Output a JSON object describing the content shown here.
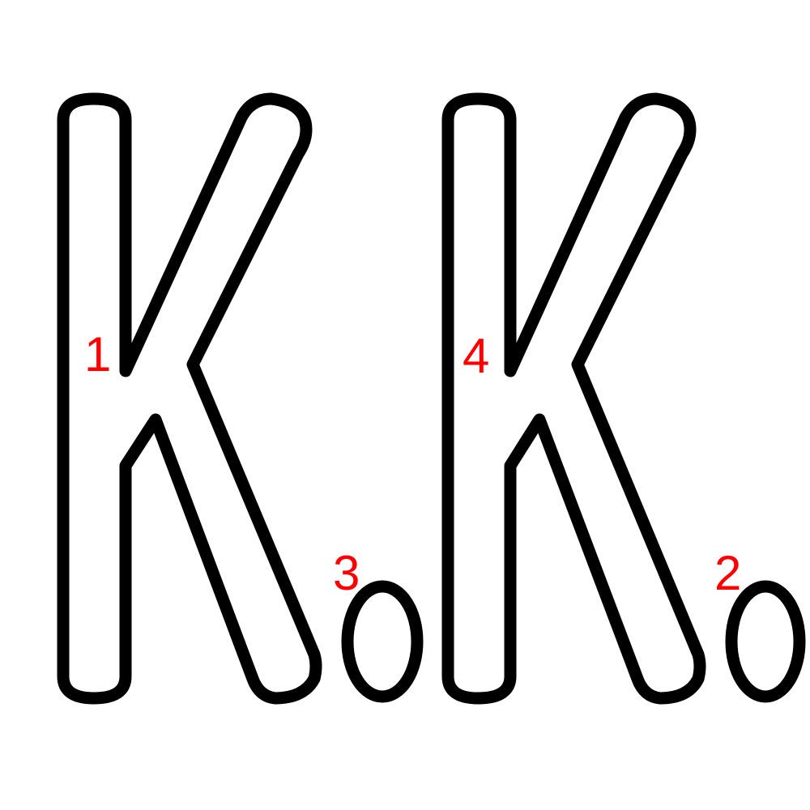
{
  "colors": {
    "outline": "#000000",
    "marker": "#ff0000",
    "background": "#ffffff"
  },
  "markers": [
    "1",
    "2",
    "3",
    "4"
  ]
}
